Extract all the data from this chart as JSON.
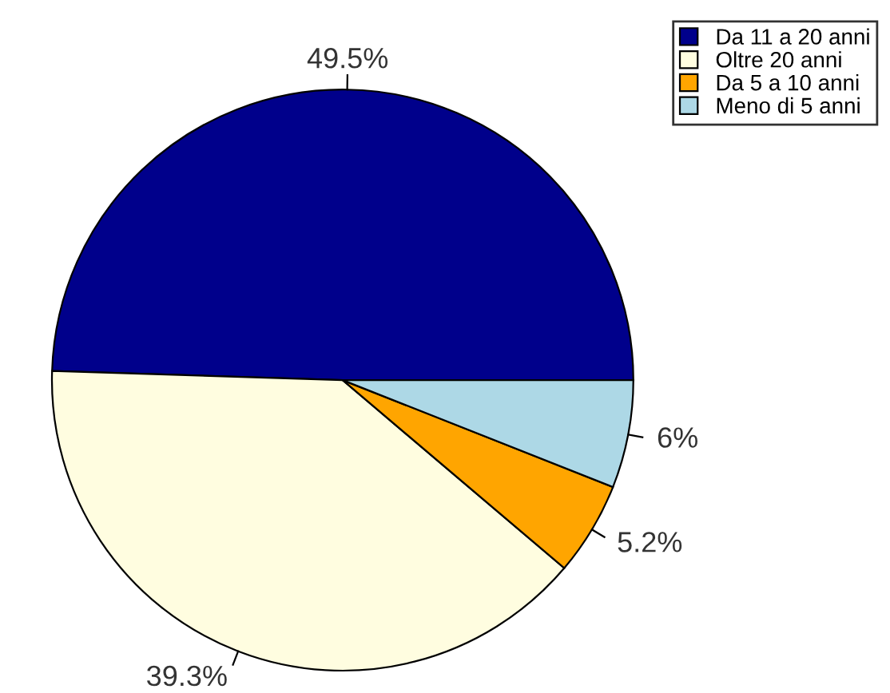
{
  "chart_data": {
    "type": "pie",
    "categories": [
      "Da 11 a 20 anni",
      "Oltre 20 anni",
      "Da 5 a 10 anni",
      "Meno di 5 anni"
    ],
    "values": [
      49.5,
      39.3,
      5.2,
      6
    ],
    "colors": [
      "#00008b",
      "#fffde0",
      "#ffa500",
      "#add8e6"
    ],
    "value_labels": [
      "49.5%",
      "39.3%",
      "5.2%",
      "6%"
    ],
    "legend": "top right"
  }
}
